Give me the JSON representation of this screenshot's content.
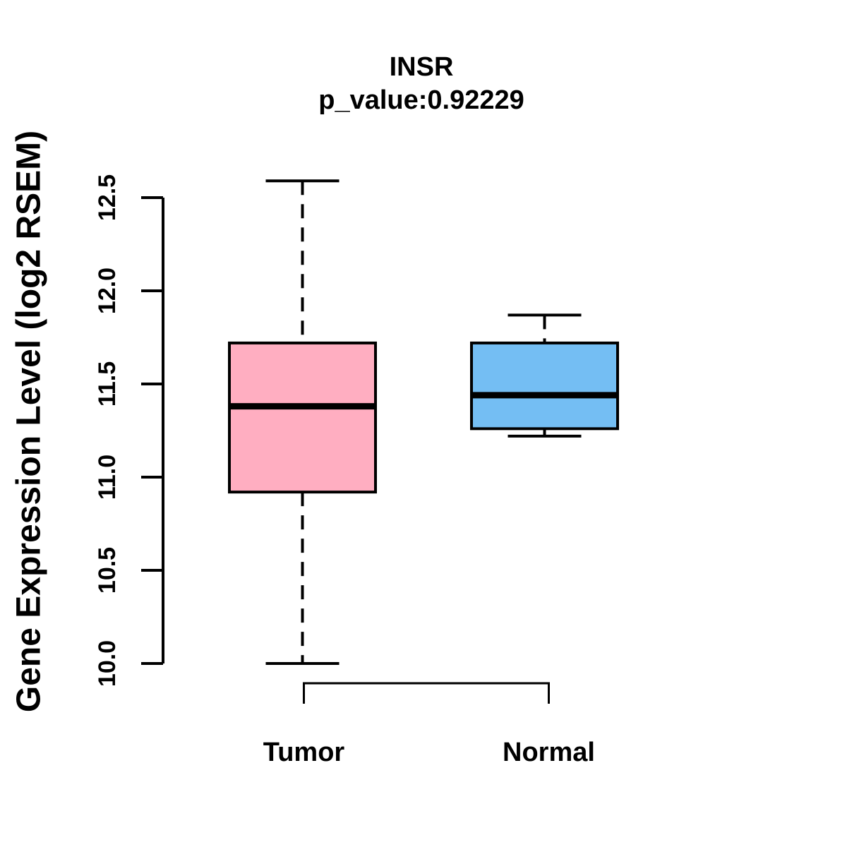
{
  "chart_data": {
    "type": "boxplot",
    "title": "INSR",
    "subtitle": "p_value:0.92229",
    "ylabel": "Gene Expression Level (log2 RSEM)",
    "xlabel": "",
    "y_axis": {
      "range": [
        10.0,
        12.5
      ],
      "ticks": [
        10.0,
        10.5,
        11.0,
        11.5,
        12.0,
        12.5
      ],
      "tick_labels": [
        "10.0",
        "10.5",
        "11.0",
        "11.5",
        "12.0",
        "12.5"
      ]
    },
    "categories": [
      "Tumor",
      "Normal"
    ],
    "series": [
      {
        "name": "Tumor",
        "color": "#FFAEC1",
        "whisker_low": 10.0,
        "q1": 10.92,
        "median": 11.38,
        "q3": 11.72,
        "whisker_high": 12.59
      },
      {
        "name": "Normal",
        "color": "#74BEF3",
        "whisker_low": 11.22,
        "q1": 11.26,
        "median": 11.44,
        "q3": 11.72,
        "whisker_high": 11.87
      }
    ],
    "comparison_bracket": {
      "from": "Tumor",
      "to": "Normal"
    },
    "colors": {
      "line": "#000000",
      "background": "#FFFFFF"
    },
    "legend": "none",
    "grid": false
  }
}
